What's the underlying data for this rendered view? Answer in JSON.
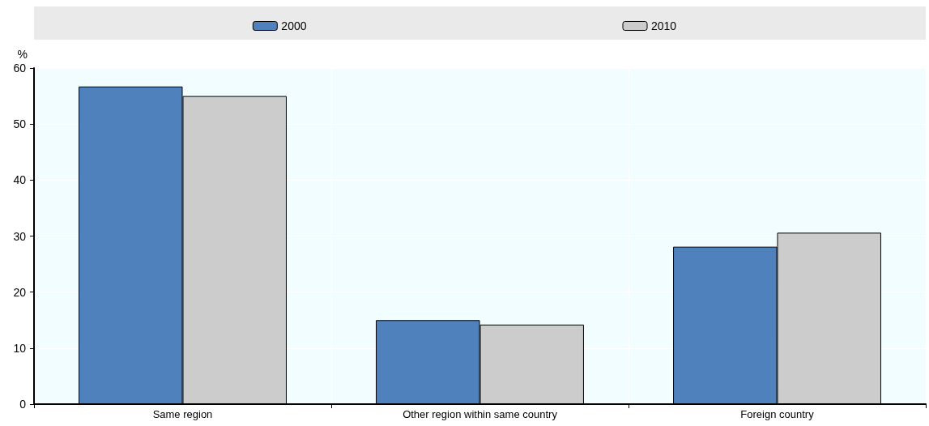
{
  "chart_data": {
    "type": "bar",
    "ylabel": "%",
    "categories": [
      "Same region",
      "Other region within same country",
      "Foreign country"
    ],
    "series": [
      {
        "name": "2000",
        "color": "#4f81bd",
        "values": [
          56.7,
          15.0,
          28.1
        ]
      },
      {
        "name": "2010",
        "color": "#cccccc",
        "values": [
          55.0,
          14.2,
          30.6
        ]
      }
    ],
    "ylim": [
      0,
      60
    ],
    "yticks": [
      0,
      10,
      20,
      30,
      40,
      50,
      60
    ],
    "grid": true,
    "legend": "top"
  }
}
